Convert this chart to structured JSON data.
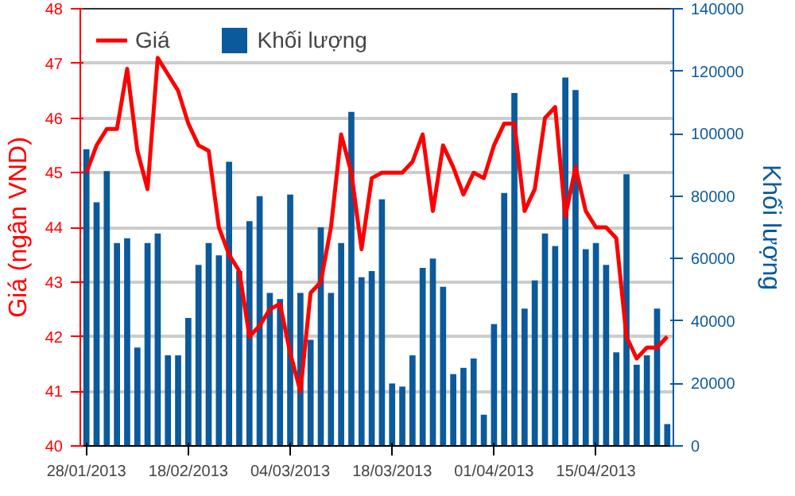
{
  "chart_data": {
    "type": "line",
    "categories": [
      "28/01/2013",
      null,
      null,
      null,
      null,
      null,
      null,
      null,
      null,
      null,
      "18/02/2013",
      null,
      null,
      null,
      null,
      null,
      null,
      null,
      null,
      null,
      "04/03/2013",
      null,
      null,
      null,
      null,
      null,
      null,
      null,
      null,
      null,
      "18/03/2013",
      null,
      null,
      null,
      null,
      null,
      null,
      null,
      null,
      null,
      "01/04/2013",
      null,
      null,
      null,
      null,
      null,
      null,
      null,
      null,
      null,
      "15/04/2013",
      null,
      null,
      null,
      null,
      null,
      null,
      null
    ],
    "series": [
      {
        "name": "Khối lượng",
        "type": "bar",
        "axis": "y2",
        "color": "#0a5a9c",
        "values": [
          95000,
          78000,
          88000,
          65000,
          66500,
          31500,
          65000,
          68000,
          29000,
          29000,
          41000,
          58000,
          65000,
          61000,
          91000,
          56000,
          72000,
          80000,
          49000,
          47000,
          80500,
          49000,
          34000,
          70000,
          49000,
          65000,
          107000,
          54000,
          56000,
          79000,
          20000,
          19000,
          29000,
          57000,
          60000,
          51000,
          23000,
          25000,
          28000,
          10000,
          39000,
          81000,
          113000,
          44000,
          53000,
          68000,
          64000,
          118000,
          114000,
          63000,
          65000,
          58000,
          30000,
          87000,
          26000,
          29000,
          44000,
          7000
        ]
      },
      {
        "name": "Giá",
        "color": "#ff0000",
        "values": [
          45.0,
          45.5,
          45.8,
          45.8,
          46.9,
          45.4,
          44.7,
          47.1,
          46.8,
          46.5,
          45.9,
          45.5,
          45.4,
          44.0,
          43.5,
          43.2,
          42.0,
          42.2,
          42.5,
          42.6,
          41.7,
          41.0,
          42.8,
          43.0,
          44.0,
          45.7,
          45.0,
          43.6,
          44.9,
          45.0,
          45.0,
          45.0,
          45.2,
          45.7,
          44.3,
          45.5,
          45.1,
          44.6,
          45.0,
          44.9,
          45.5,
          45.9,
          45.9,
          44.3,
          44.7,
          46.0,
          46.2,
          44.2,
          45.1,
          44.3,
          44.0,
          44.0,
          43.8,
          42.0,
          41.6,
          41.8,
          41.8,
          42.0
        ]
      }
    ],
    "ylabel": "Giá (ngân VND)",
    "y2label": "Khối lượng",
    "ylim": [
      40,
      48
    ],
    "yticks": [
      40,
      41,
      42,
      43,
      44,
      45,
      46,
      47,
      48
    ],
    "y2lim": [
      0,
      140000
    ],
    "y2ticks": [
      0,
      20000,
      40000,
      60000,
      80000,
      100000,
      120000,
      140000
    ],
    "grid": "y",
    "legend": "top left"
  }
}
